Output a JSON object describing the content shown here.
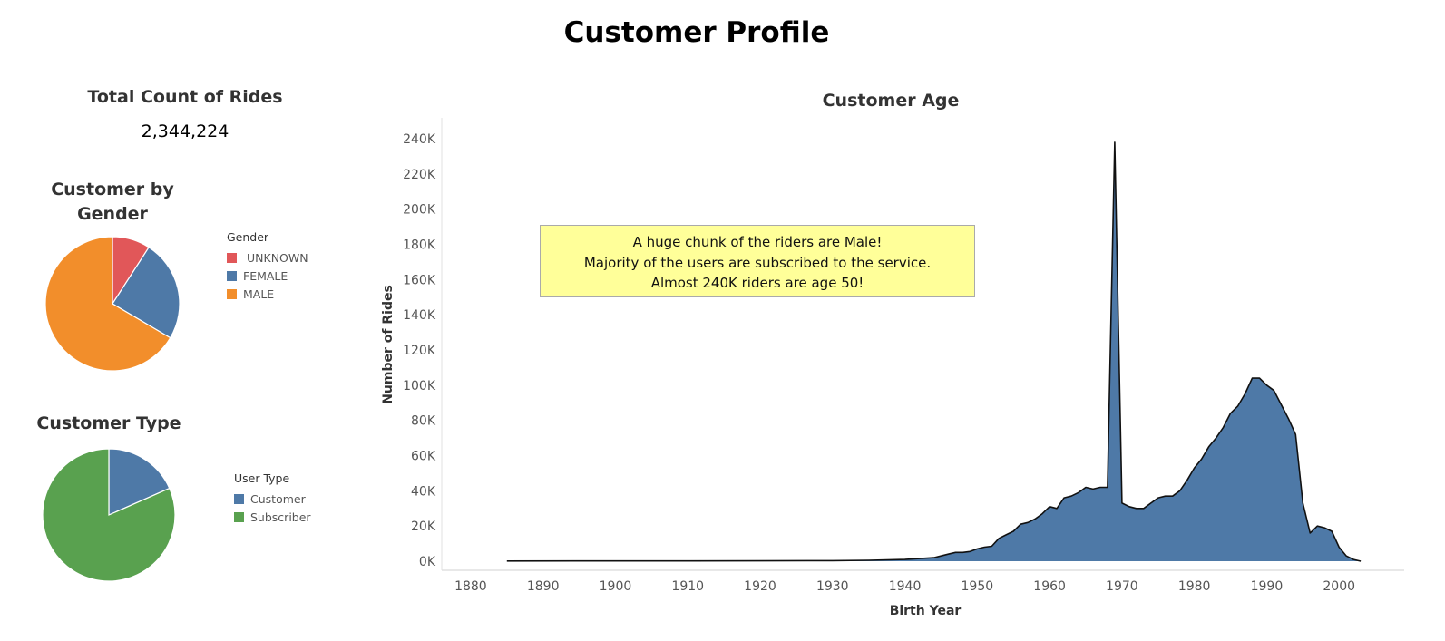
{
  "dashboard": {
    "title": "Customer Profile",
    "kpi": {
      "title": "Total Count of Rides",
      "value": "2,344,224"
    }
  },
  "annotation": {
    "lines": [
      "A huge chunk of the riders are Male!",
      "Majority of the users are subscribed to the service.",
      "Almost 240K riders are age 50!"
    ],
    "background": "#ffff99"
  },
  "chart_data": [
    {
      "type": "pie",
      "title": "Customer by Gender",
      "legend_title": "Gender",
      "legend_position": "right",
      "slices": [
        {
          "label": "UNKNOWN",
          "value": 0.091,
          "color": "#e15759"
        },
        {
          "label": "FEMALE",
          "value": 0.244,
          "color": "#4e79a7"
        },
        {
          "label": "MALE",
          "value": 0.665,
          "color": "#f28e2b"
        }
      ]
    },
    {
      "type": "pie",
      "title": "Customer Type",
      "legend_title": "User Type",
      "legend_position": "right",
      "slices": [
        {
          "label": "Customer",
          "value": 0.184,
          "color": "#4e79a7"
        },
        {
          "label": "Subscriber",
          "value": 0.816,
          "color": "#59a14f"
        }
      ]
    },
    {
      "type": "area",
      "title": "Customer Age",
      "xlabel": "Birth Year",
      "ylabel": "Number of Rides",
      "xlim": [
        1876,
        2009
      ],
      "ylim": [
        0,
        245000
      ],
      "x_ticks": [
        1880,
        1890,
        1900,
        1910,
        1920,
        1930,
        1940,
        1950,
        1960,
        1970,
        1980,
        1990,
        2000
      ],
      "y_ticks": [
        0,
        20000,
        40000,
        60000,
        80000,
        100000,
        120000,
        140000,
        160000,
        180000,
        200000,
        220000,
        240000
      ],
      "y_tick_labels": [
        "0K",
        "20K",
        "40K",
        "60K",
        "80K",
        "100K",
        "120K",
        "140K",
        "160K",
        "180K",
        "200K",
        "220K",
        "240K"
      ],
      "grid": false,
      "color": "#4e79a7",
      "series": [
        {
          "x": [
            1885,
            1900,
            1920,
            1930,
            1935,
            1940,
            1942,
            1944,
            1945,
            1946,
            1947,
            1948,
            1949,
            1950,
            1951,
            1952,
            1953,
            1954,
            1955,
            1956,
            1957,
            1958,
            1959,
            1960,
            1961,
            1962,
            1963,
            1964,
            1965,
            1966,
            1967,
            1968,
            1969,
            1970,
            1971,
            1972,
            1973,
            1974,
            1975,
            1976,
            1977,
            1978,
            1979,
            1980,
            1981,
            1982,
            1983,
            1984,
            1985,
            1986,
            1987,
            1988,
            1989,
            1990,
            1991,
            1992,
            1993,
            1994,
            1995,
            1996,
            1997,
            1998,
            1999,
            2000,
            2001,
            2002,
            2003
          ],
          "y": [
            100,
            150,
            200,
            300,
            500,
            1000,
            1500,
            2000,
            3000,
            4000,
            5000,
            5000,
            5500,
            7000,
            8000,
            8500,
            13000,
            15000,
            17000,
            21000,
            22000,
            24000,
            27000,
            31000,
            30000,
            36000,
            37000,
            39000,
            42000,
            41000,
            42000,
            42000,
            238000,
            33000,
            31000,
            30000,
            30000,
            33000,
            36000,
            37000,
            37000,
            40000,
            46000,
            53000,
            58000,
            65000,
            70000,
            76000,
            84000,
            88000,
            95000,
            104000,
            104000,
            100000,
            97000,
            89000,
            81000,
            72000,
            33000,
            16000,
            20000,
            19000,
            17000,
            8000,
            3000,
            1000,
            0
          ]
        }
      ]
    }
  ]
}
